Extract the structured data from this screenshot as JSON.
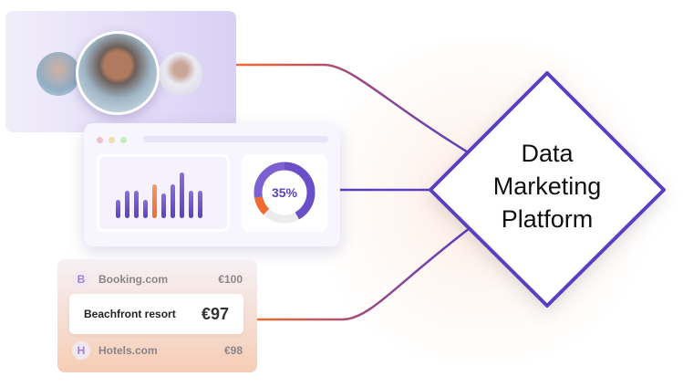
{
  "dashboard": {
    "donut_label": "35%",
    "donut_value": 35,
    "bars": [
      0.4,
      0.6,
      0.6,
      0.4,
      0.75,
      0.55,
      0.75,
      1.0,
      0.6,
      0.6
    ],
    "highlight_bar": 4
  },
  "prices": {
    "rows": [
      {
        "badge": "B",
        "name": "Booking.com",
        "price": "€100"
      },
      {
        "badge": "H",
        "name": "Hotels.com",
        "price": "€98"
      }
    ],
    "selected": {
      "name": "Beachfront resort",
      "price": "€97"
    }
  },
  "platform": {
    "line1": "Data",
    "line2": "Marketing",
    "line3": "Platform"
  },
  "colors": {
    "purple": "#5a3fc0",
    "orange": "#ee6b2f"
  }
}
